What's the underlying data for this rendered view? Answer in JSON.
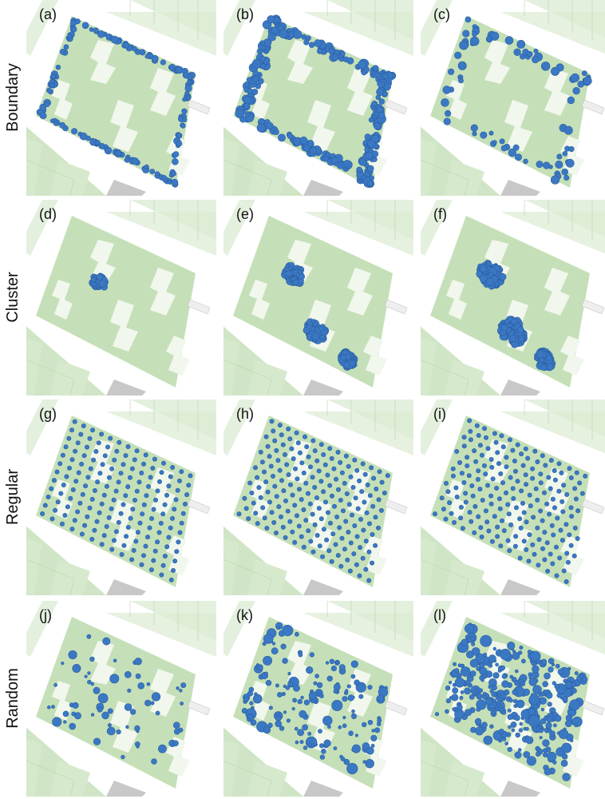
{
  "rows": [
    {
      "label": "Boundary",
      "panels": [
        "(a)",
        "(b)",
        "(c)"
      ]
    },
    {
      "label": "Cluster",
      "panels": [
        "(d)",
        "(e)",
        "(f)"
      ]
    },
    {
      "label": "Regular",
      "panels": [
        "(g)",
        "(h)",
        "(i)"
      ]
    },
    {
      "label": "Random",
      "panels": [
        "(j)",
        "(k)",
        "(l)"
      ]
    }
  ]
}
